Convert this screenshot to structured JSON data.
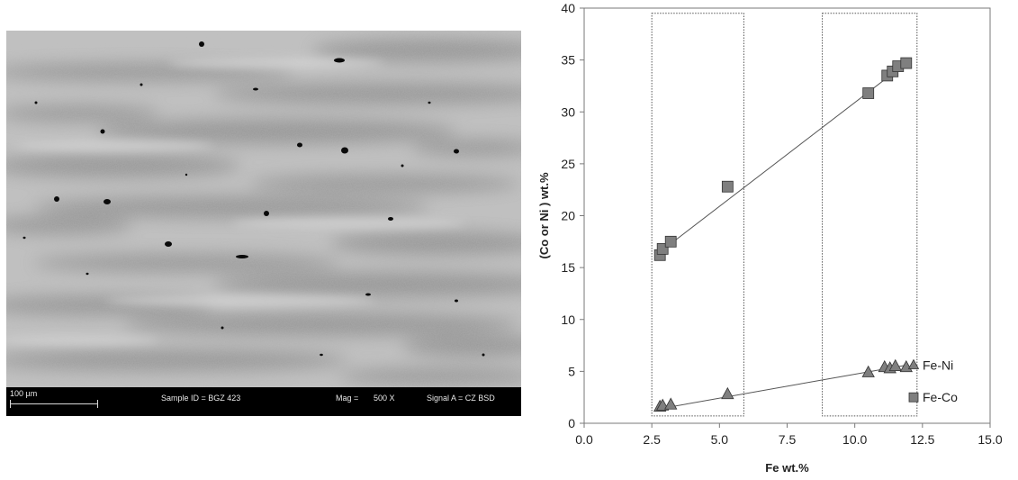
{
  "sem": {
    "scale_label": "100 µm",
    "sample_id": "Sample ID = BGZ 423",
    "mag_label": "Mag =",
    "mag_value": "500 X",
    "signal": "Signal A = CZ BSD"
  },
  "chart_data": {
    "type": "scatter",
    "xlabel": "Fe wt.%",
    "ylabel": "(Co or Ni ) wt.%",
    "xlim": [
      0,
      15
    ],
    "ylim": [
      0,
      40
    ],
    "xticks": [
      "0.0",
      "2.5",
      "5.0",
      "7.5",
      "10.0",
      "12.5",
      "15.0"
    ],
    "yticks": [
      "0",
      "5",
      "10",
      "15",
      "20",
      "25",
      "30",
      "35",
      "40"
    ],
    "grid": false,
    "legend_position": "bottom-right",
    "series": [
      {
        "name": "Fe-Ni",
        "marker": "triangle",
        "color": "#7f7f7f",
        "points": [
          [
            2.8,
            1.6
          ],
          [
            2.9,
            1.7
          ],
          [
            3.2,
            1.8
          ],
          [
            5.3,
            2.8
          ],
          [
            10.5,
            4.9
          ],
          [
            11.1,
            5.4
          ],
          [
            11.3,
            5.3
          ],
          [
            11.5,
            5.5
          ],
          [
            11.9,
            5.4
          ]
        ],
        "trendline": [
          [
            2.8,
            1.4
          ],
          [
            11.9,
            5.6
          ]
        ]
      },
      {
        "name": "Fe-Co",
        "marker": "square",
        "color": "#7f7f7f",
        "points": [
          [
            2.8,
            16.2
          ],
          [
            2.9,
            16.8
          ],
          [
            3.2,
            17.5
          ],
          [
            5.3,
            22.8
          ],
          [
            10.5,
            31.8
          ],
          [
            11.2,
            33.5
          ],
          [
            11.4,
            33.9
          ],
          [
            11.6,
            34.4
          ],
          [
            11.9,
            34.7
          ]
        ],
        "trendline": [
          [
            2.8,
            16.5
          ],
          [
            11.9,
            34.7
          ]
        ]
      }
    ],
    "regions": [
      {
        "x": [
          2.5,
          5.9
        ],
        "y": [
          0.7,
          39.5
        ]
      },
      {
        "x": [
          8.8,
          12.3
        ],
        "y": [
          0.7,
          39.5
        ]
      }
    ]
  }
}
